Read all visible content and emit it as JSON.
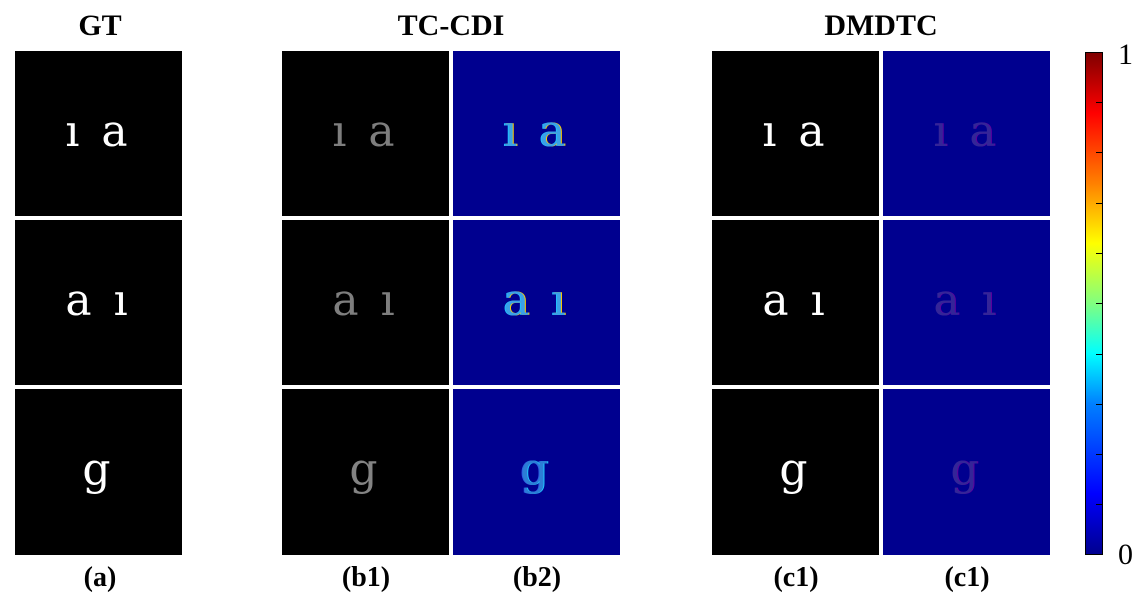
{
  "headings": {
    "gt": "GT",
    "tc_cdi": "TC-CDI",
    "dmdtc": "DMDTC"
  },
  "captions": {
    "a": "(a)",
    "b1": "(b1)",
    "b2": "(b2)",
    "c1_left": "(c1)",
    "c1_right": "(c1)"
  },
  "tile_glyphs": {
    "row1": "ı a",
    "row2": "a ı",
    "row3": "g"
  },
  "colorbar": {
    "max_label": "1",
    "min_label": "0",
    "colormap": "jet",
    "min_color": "#00008f",
    "max_color": "#800000"
  }
}
